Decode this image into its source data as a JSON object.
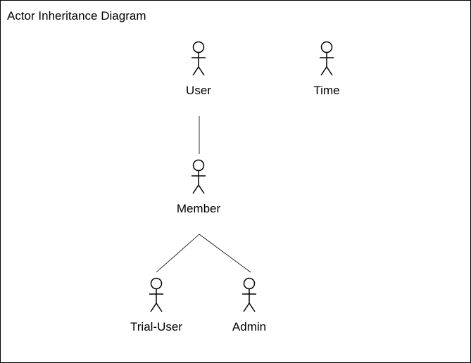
{
  "diagram": {
    "title": "Actor Inheritance Diagram",
    "colors": {
      "stroke": "#000000",
      "background": "#ffffff"
    },
    "actors": [
      {
        "id": "user",
        "label": "User"
      },
      {
        "id": "time",
        "label": "Time"
      },
      {
        "id": "member",
        "label": "Member"
      },
      {
        "id": "trial-user",
        "label": "Trial-User"
      },
      {
        "id": "admin",
        "label": "Admin"
      }
    ],
    "relations": [
      {
        "from": "member",
        "to": "user",
        "type": "generalization"
      },
      {
        "from": "trial-user",
        "to": "member",
        "type": "generalization"
      },
      {
        "from": "admin",
        "to": "member",
        "type": "generalization"
      }
    ]
  }
}
